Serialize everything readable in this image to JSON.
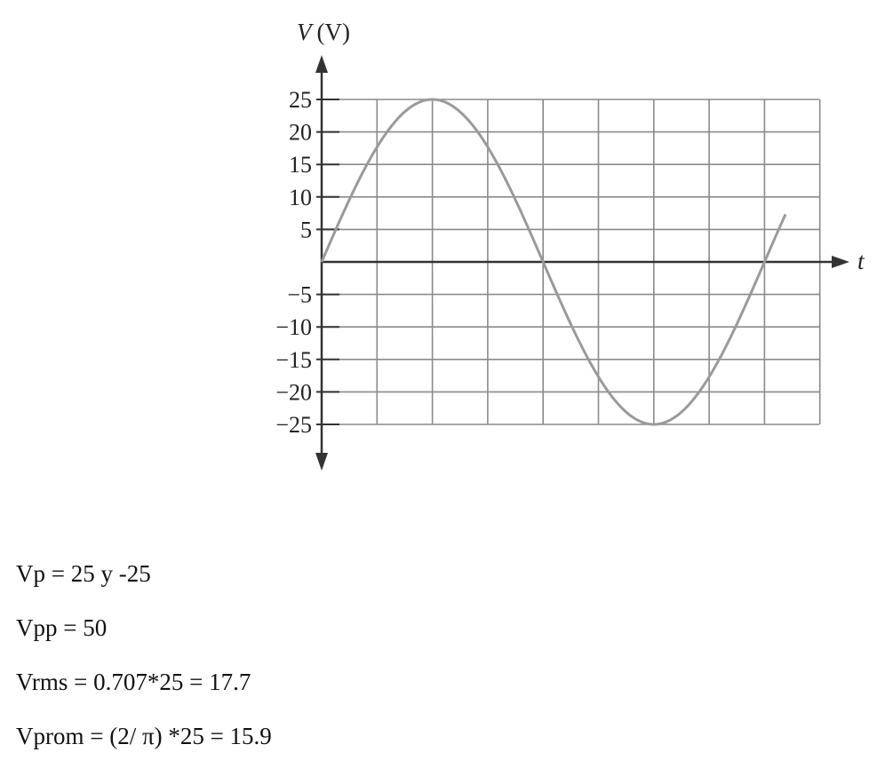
{
  "chart_data": {
    "type": "line",
    "ylabel_symbol": "V",
    "ylabel_unit": "(V)",
    "xlabel": "t",
    "ylim": [
      -25,
      25
    ],
    "y_ticks": [
      25,
      20,
      15,
      10,
      5,
      -5,
      -10,
      -15,
      -20,
      -25
    ],
    "y_tick_labels": [
      "25",
      "20",
      "15",
      "10",
      "5",
      "−5",
      "−10",
      "−15",
      "−20",
      "−25"
    ],
    "grid": true,
    "series": [
      {
        "amplitude": 25,
        "shape": "sine",
        "cycles_shown": 1.05,
        "color": "#9a9a9a"
      }
    ]
  },
  "notes": [
    "Vp = 25 y -25",
    "Vpp = 50",
    "Vrms = 0.707*25 = 17.7",
    "Vprom = (2/ π) *25 = 15.9"
  ]
}
